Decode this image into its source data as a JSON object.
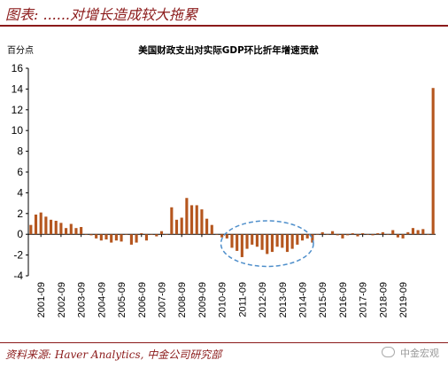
{
  "header": {
    "title": "图表: ......对增长造成较大拖累"
  },
  "footer": {
    "source": "资料来源: Haver Analytics, 中金公司研究部",
    "watermark": "中金宏观"
  },
  "chart_data": {
    "type": "bar",
    "title": "美国财政支出对实际GDP环比折年增速贡献",
    "unit": "百分点",
    "ylim": [
      -4,
      16
    ],
    "yticks": [
      -4,
      -2,
      0,
      2,
      4,
      6,
      8,
      10,
      12,
      14,
      16
    ],
    "x_tick_labels": [
      "2001-09",
      "2002-09",
      "2003-09",
      "2004-09",
      "2005-09",
      "2006-09",
      "2007-09",
      "2008-09",
      "2009-09",
      "2010-09",
      "2011-09",
      "2012-09",
      "2013-09",
      "2014-09",
      "2015-09",
      "2016-09",
      "2017-09",
      "2018-09",
      "2019-09"
    ],
    "bar_color": "#B5561E",
    "annotation": {
      "shape": "dashed-ellipse",
      "color": "#4F8FCB",
      "period": "2011-2014"
    },
    "quarters_start": "2001-Q1",
    "values": [
      0.9,
      1.9,
      2.1,
      1.7,
      1.4,
      1.3,
      1.1,
      0.6,
      1.0,
      0.6,
      0.7,
      0.0,
      -0.1,
      -0.4,
      -0.6,
      -0.5,
      -0.8,
      -0.6,
      -0.7,
      0.0,
      -1.0,
      -0.8,
      0.1,
      -0.6,
      0.0,
      -0.2,
      0.3,
      0.0,
      2.6,
      1.4,
      1.6,
      3.5,
      2.8,
      2.8,
      2.4,
      1.5,
      0.9,
      0.0,
      -0.3,
      -0.4,
      -1.3,
      -1.6,
      -2.2,
      -1.4,
      -1.0,
      -1.2,
      -1.5,
      -1.9,
      -1.7,
      -1.2,
      -1.3,
      -1.7,
      -1.4,
      -1.0,
      -0.6,
      -0.4,
      -0.8,
      0.0,
      0.2,
      0.0,
      0.3,
      -0.1,
      -0.4,
      -0.1,
      0.1,
      -0.2,
      0.1,
      0.0,
      -0.1,
      0.1,
      0.2,
      0.0,
      0.4,
      -0.3,
      -0.4,
      0.2,
      0.6,
      0.4,
      0.5,
      0.0,
      14.1
    ]
  }
}
